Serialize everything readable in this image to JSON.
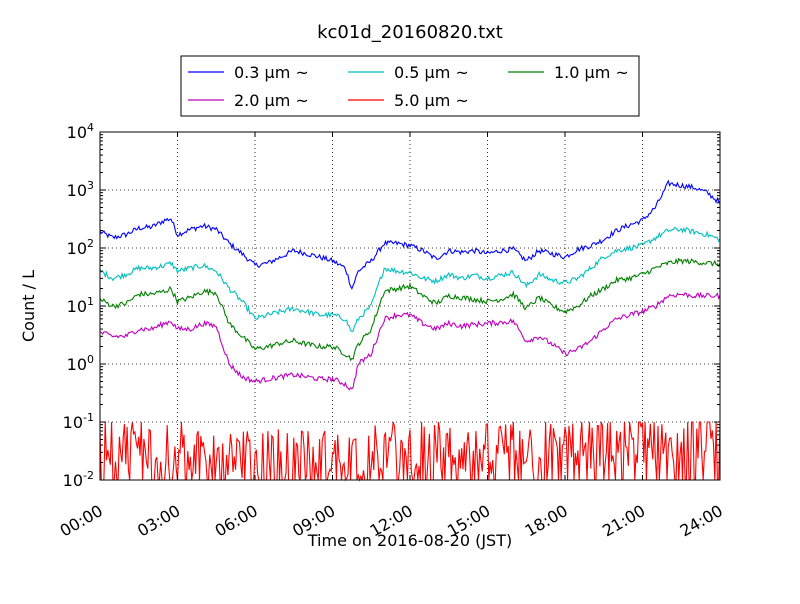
{
  "chart_data": {
    "type": "line",
    "title": "kc01d_20160820.txt",
    "xlabel": "Time on 2016-08-20 (JST)",
    "ylabel": "Count / L",
    "y_scale": "log",
    "xlim": [
      0,
      24
    ],
    "ylim": [
      0.01,
      10000
    ],
    "x_ticks": [
      {
        "value": 0,
        "label": "00:00"
      },
      {
        "value": 3,
        "label": "03:00"
      },
      {
        "value": 6,
        "label": "06:00"
      },
      {
        "value": 9,
        "label": "09:00"
      },
      {
        "value": 12,
        "label": "12:00"
      },
      {
        "value": 15,
        "label": "15:00"
      },
      {
        "value": 18,
        "label": "18:00"
      },
      {
        "value": 21,
        "label": "21:00"
      },
      {
        "value": 24,
        "label": "24:00"
      }
    ],
    "y_ticks": [
      {
        "value": 0.01,
        "base": "10",
        "exp": "-2"
      },
      {
        "value": 0.1,
        "base": "10",
        "exp": "-1"
      },
      {
        "value": 1,
        "base": "10",
        "exp": "0"
      },
      {
        "value": 10,
        "base": "10",
        "exp": "1"
      },
      {
        "value": 100,
        "base": "10",
        "exp": "2"
      },
      {
        "value": 1000,
        "base": "10",
        "exp": "3"
      },
      {
        "value": 10000,
        "base": "10",
        "exp": "4"
      }
    ],
    "grid": true,
    "legend_position": "top",
    "x": [
      0,
      0.5,
      1,
      1.5,
      2,
      2.5,
      2.75,
      3,
      3.5,
      4,
      4.5,
      5,
      5.5,
      6,
      6.5,
      7,
      7.5,
      8,
      8.5,
      9,
      9.5,
      9.75,
      10,
      10.5,
      11,
      11.5,
      12,
      12.5,
      13,
      13.5,
      14,
      14.5,
      15,
      15.5,
      16,
      16.5,
      17,
      17.5,
      18,
      18.5,
      19,
      19.5,
      20,
      20.5,
      21,
      21.5,
      22,
      22.5,
      23,
      23.5,
      24
    ],
    "series": [
      {
        "name": "0.3 μm ~",
        "color": "#0000ff",
        "values": [
          190,
          150,
          170,
          220,
          230,
          300,
          320,
          170,
          210,
          240,
          210,
          120,
          80,
          50,
          55,
          70,
          90,
          80,
          70,
          60,
          45,
          20,
          40,
          60,
          120,
          120,
          110,
          90,
          65,
          90,
          85,
          90,
          80,
          90,
          95,
          60,
          90,
          80,
          70,
          95,
          110,
          140,
          200,
          250,
          300,
          500,
          1300,
          1200,
          1100,
          900,
          600
        ]
      },
      {
        "name": "0.5 μm ~",
        "color": "#00bfbf",
        "values": [
          40,
          30,
          35,
          45,
          45,
          50,
          55,
          40,
          45,
          50,
          40,
          20,
          12,
          6,
          7,
          8,
          9,
          8,
          7,
          7,
          6,
          3.5,
          6,
          10,
          45,
          40,
          38,
          30,
          27,
          35,
          30,
          34,
          30,
          34,
          38,
          22,
          35,
          28,
          25,
          30,
          45,
          70,
          90,
          100,
          110,
          150,
          200,
          210,
          190,
          170,
          140
        ]
      },
      {
        "name": "1.0 μm ~",
        "color": "#008000",
        "values": [
          13,
          10,
          11,
          16,
          16,
          18,
          20,
          12,
          14,
          18,
          17,
          5,
          3,
          1.8,
          2,
          2.3,
          2.5,
          2.2,
          2,
          2,
          1.5,
          1.2,
          2.2,
          4,
          18,
          20,
          22,
          15,
          11,
          15,
          14,
          13,
          12,
          13,
          16,
          9,
          14,
          10,
          8,
          10,
          15,
          20,
          28,
          30,
          35,
          45,
          55,
          60,
          58,
          55,
          53
        ]
      },
      {
        "name": "2.0 μm ~",
        "color": "#bf00bf",
        "values": [
          3.5,
          3,
          3,
          4,
          4,
          5,
          5.5,
          4,
          4,
          5,
          4.5,
          1,
          0.6,
          0.5,
          0.55,
          0.6,
          0.65,
          0.6,
          0.55,
          0.55,
          0.45,
          0.35,
          1,
          1.5,
          6,
          7,
          7,
          5,
          4,
          5,
          4.5,
          4.8,
          5,
          5.2,
          5.5,
          2.5,
          3,
          2.2,
          1.5,
          1.8,
          2.5,
          4,
          6,
          7,
          8,
          10,
          15,
          16,
          15,
          15,
          15
        ]
      },
      {
        "name": "5.0 μm ~",
        "color": "#ff0000",
        "noise": true,
        "values": [
          0.04,
          0.03,
          0.03,
          0.035,
          0.03,
          0.035,
          0.03,
          0.03,
          0.025,
          0.025,
          0.025,
          0.025,
          0.02,
          0.02,
          0.02,
          0.02,
          0.02,
          0.02,
          0.02,
          0.02,
          0.02,
          0.02,
          0.02,
          0.025,
          0.025,
          0.03,
          0.03,
          0.03,
          0.03,
          0.025,
          0.025,
          0.025,
          0.025,
          0.03,
          0.03,
          0.03,
          0.03,
          0.03,
          0.03,
          0.03,
          0.03,
          0.03,
          0.035,
          0.035,
          0.04,
          0.04,
          0.04,
          0.045,
          0.045,
          0.05,
          0.05
        ]
      }
    ]
  }
}
